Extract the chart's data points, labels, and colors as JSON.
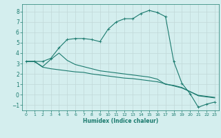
{
  "title": "",
  "xlabel": "Humidex (Indice chaleur)",
  "bg_color": "#d4eeee",
  "grid_color": "#c0d8d8",
  "line_color": "#1a7a6e",
  "xlim": [
    -0.5,
    23.5
  ],
  "ylim": [
    -1.5,
    8.7
  ],
  "xticks": [
    0,
    1,
    2,
    3,
    4,
    5,
    6,
    7,
    8,
    9,
    10,
    11,
    12,
    13,
    14,
    15,
    16,
    17,
    18,
    19,
    20,
    21,
    22,
    23
  ],
  "yticks": [
    -1,
    0,
    1,
    2,
    3,
    4,
    5,
    6,
    7,
    8
  ],
  "series1_x": [
    0,
    1,
    2,
    3,
    4,
    5,
    6,
    7,
    8,
    9,
    10,
    11,
    12,
    13,
    14,
    15,
    16,
    17,
    18,
    19,
    20,
    21,
    22,
    23
  ],
  "series1_y": [
    3.2,
    3.2,
    3.2,
    3.5,
    4.5,
    5.3,
    5.4,
    5.4,
    5.3,
    5.1,
    6.3,
    7.0,
    7.3,
    7.3,
    7.8,
    8.1,
    7.9,
    7.5,
    3.2,
    1.1,
    0.1,
    -1.2,
    -0.9,
    -0.7
  ],
  "series2_x": [
    0,
    1,
    2,
    3,
    4,
    5,
    6,
    7,
    8,
    9,
    10,
    11,
    12,
    13,
    14,
    15,
    16,
    17,
    18,
    19,
    20,
    21,
    22,
    23
  ],
  "series2_y": [
    3.2,
    3.2,
    2.7,
    3.4,
    4.0,
    3.3,
    2.9,
    2.7,
    2.5,
    2.3,
    2.2,
    2.1,
    2.0,
    1.9,
    1.8,
    1.7,
    1.5,
    1.0,
    0.9,
    0.7,
    0.3,
    -0.1,
    -0.2,
    -0.3
  ],
  "series3_x": [
    0,
    1,
    2,
    3,
    4,
    5,
    6,
    7,
    8,
    9,
    10,
    11,
    12,
    13,
    14,
    15,
    16,
    17,
    18,
    19,
    20,
    21,
    22,
    23
  ],
  "series3_y": [
    3.2,
    3.2,
    2.65,
    2.5,
    2.4,
    2.3,
    2.2,
    2.15,
    2.0,
    1.9,
    1.8,
    1.7,
    1.6,
    1.55,
    1.45,
    1.35,
    1.25,
    1.05,
    0.85,
    0.65,
    0.3,
    -0.05,
    -0.15,
    -0.25
  ]
}
